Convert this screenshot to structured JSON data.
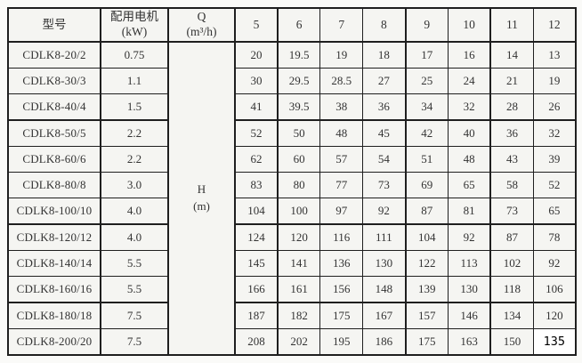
{
  "table": {
    "headers": {
      "model": "型号",
      "motor_line1": "配用电机",
      "motor_line2": "(kW)",
      "q_line1": "Q",
      "q_line2": "(m³/h)",
      "flow_columns": [
        "5",
        "6",
        "7",
        "8",
        "9",
        "10",
        "11",
        "12"
      ]
    },
    "merged_cell": {
      "label": "H",
      "unit": "(m)"
    },
    "rows": [
      {
        "model": "CDLK8-20/2",
        "power": "0.75",
        "heads": [
          "20",
          "19.5",
          "19",
          "18",
          "17",
          "16",
          "14",
          "13"
        ]
      },
      {
        "model": "CDLK8-30/3",
        "power": "1.1",
        "heads": [
          "30",
          "29.5",
          "28.5",
          "27",
          "25",
          "24",
          "21",
          "19"
        ]
      },
      {
        "model": "CDLK8-40/4",
        "power": "1.5",
        "heads": [
          "41",
          "39.5",
          "38",
          "36",
          "34",
          "32",
          "28",
          "26"
        ]
      },
      {
        "model": "CDLK8-50/5",
        "power": "2.2",
        "heads": [
          "52",
          "50",
          "48",
          "45",
          "42",
          "40",
          "36",
          "32"
        ]
      },
      {
        "model": "CDLK8-60/6",
        "power": "2.2",
        "heads": [
          "62",
          "60",
          "57",
          "54",
          "51",
          "48",
          "43",
          "39"
        ]
      },
      {
        "model": "CDLK8-80/8",
        "power": "3.0",
        "heads": [
          "83",
          "80",
          "77",
          "73",
          "69",
          "65",
          "58",
          "52"
        ]
      },
      {
        "model": "CDLK8-100/10",
        "power": "4.0",
        "heads": [
          "104",
          "100",
          "97",
          "92",
          "87",
          "81",
          "73",
          "65"
        ]
      },
      {
        "model": "CDLK8-120/12",
        "power": "4.0",
        "heads": [
          "124",
          "120",
          "116",
          "111",
          "104",
          "92",
          "87",
          "78"
        ]
      },
      {
        "model": "CDLK8-140/14",
        "power": "5.5",
        "heads": [
          "145",
          "141",
          "136",
          "130",
          "122",
          "113",
          "102",
          "92"
        ]
      },
      {
        "model": "CDLK8-160/16",
        "power": "5.5",
        "heads": [
          "166",
          "161",
          "156",
          "148",
          "139",
          "130",
          "118",
          "106"
        ]
      },
      {
        "model": "CDLK8-180/18",
        "power": "7.5",
        "heads": [
          "187",
          "182",
          "175",
          "167",
          "157",
          "146",
          "134",
          "120"
        ]
      },
      {
        "model": "CDLK8-200/20",
        "power": "7.5",
        "heads": [
          "208",
          "202",
          "195",
          "186",
          "175",
          "163",
          "150",
          "135"
        ]
      }
    ],
    "group_breaks_after_row_index": [
      2,
      6,
      9
    ],
    "edited_cell": {
      "row_index": 11,
      "head_index": 7
    },
    "colors": {
      "page_bg": "#fafaf8",
      "cell_bg": "#f5f5f2",
      "border": "#1f1f1f",
      "text": "#333333",
      "edited_bg": "#ffffff",
      "edited_text": "#000000"
    }
  }
}
